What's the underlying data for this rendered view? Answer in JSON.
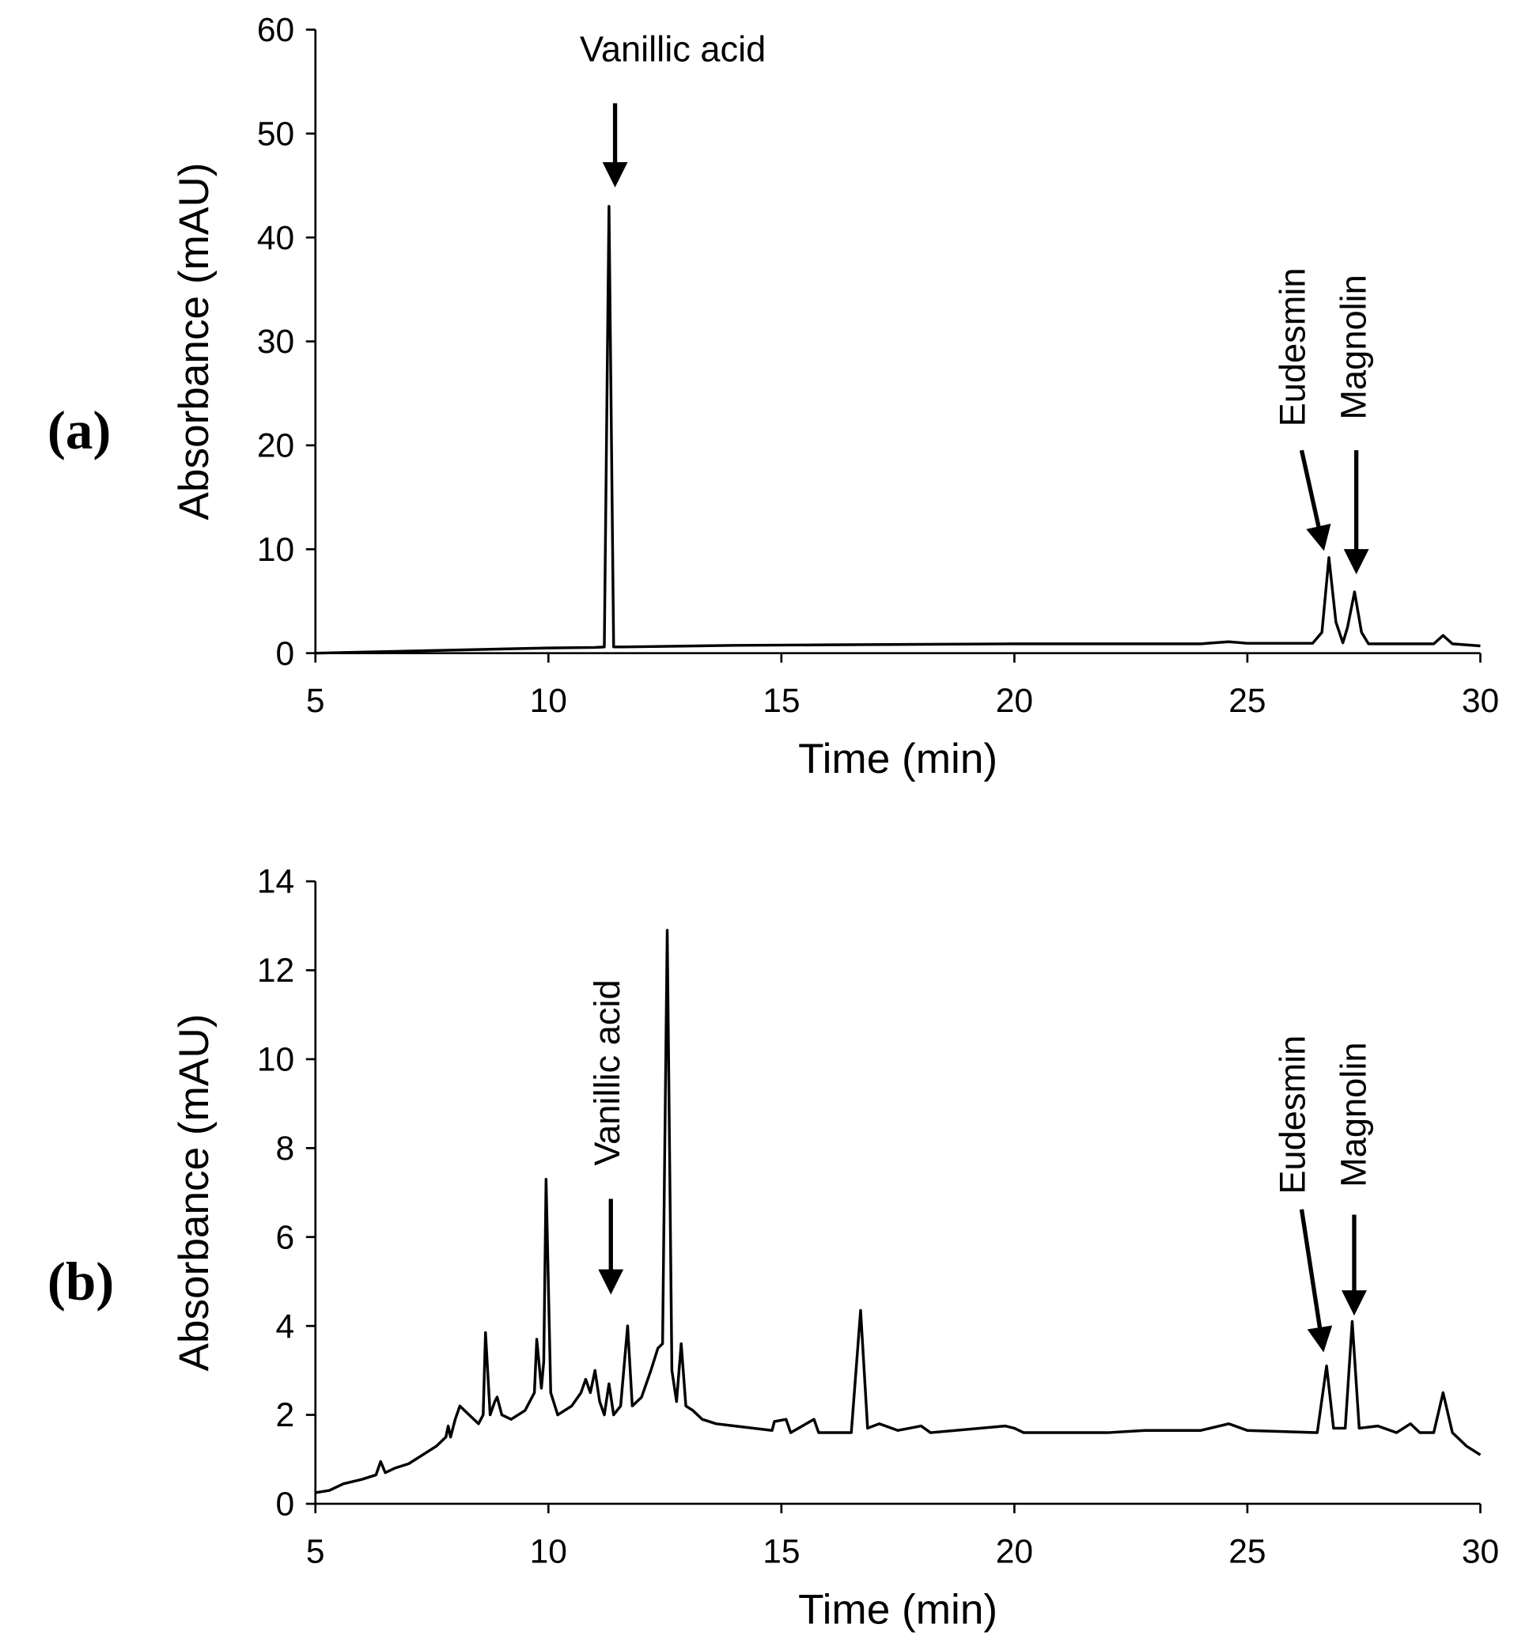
{
  "chart_data": [
    {
      "type": "line",
      "panel_label": "(a)",
      "xlabel": "Time (min)",
      "ylabel": "Absorbance (mAU)",
      "color": "#000000",
      "xlim": [
        5,
        30
      ],
      "xticks": [
        5,
        10,
        15,
        20,
        25,
        30
      ],
      "ylim": [
        0,
        60
      ],
      "yticks": [
        0,
        10,
        20,
        30,
        40,
        50,
        60
      ],
      "annotations": [
        "Vanillic acid",
        "Eudesmin",
        "Magnolin"
      ],
      "x": [
        5,
        6,
        8,
        10,
        11,
        11.2,
        11.3,
        11.4,
        11.6,
        14,
        16,
        20,
        24,
        24.6,
        25,
        26.4,
        26.6,
        26.75,
        26.9,
        27.05,
        27.15,
        27.3,
        27.45,
        27.6,
        29,
        29.2,
        29.4,
        30
      ],
      "values": [
        0,
        0.1,
        0.3,
        0.5,
        0.55,
        0.6,
        43,
        0.6,
        0.6,
        0.75,
        0.8,
        0.9,
        0.9,
        1.1,
        0.95,
        0.95,
        2,
        9.2,
        3,
        1,
        2.5,
        5.9,
        2,
        0.9,
        0.9,
        1.7,
        0.9,
        0.7
      ]
    },
    {
      "type": "line",
      "panel_label": "(b)",
      "xlabel": "Time (min)",
      "ylabel": "Absorbance (mAU)",
      "color": "#000000",
      "xlim": [
        5,
        30
      ],
      "xticks": [
        5,
        10,
        15,
        20,
        25,
        30
      ],
      "ylim": [
        0,
        14
      ],
      "yticks": [
        0,
        2,
        4,
        6,
        8,
        10,
        12,
        14
      ],
      "annotations": [
        "Vanillic acid",
        "Eudesmin",
        "Magnolin"
      ],
      "x": [
        5,
        5.3,
        5.6,
        6,
        6.3,
        6.4,
        6.5,
        6.7,
        7,
        7.3,
        7.6,
        7.8,
        7.85,
        7.9,
        8.0,
        8.1,
        8.3,
        8.5,
        8.6,
        8.65,
        8.75,
        8.85,
        8.9,
        9.0,
        9.2,
        9.5,
        9.7,
        9.75,
        9.85,
        9.9,
        9.95,
        10.05,
        10.2,
        10.5,
        10.7,
        10.8,
        10.9,
        11.0,
        11.1,
        11.2,
        11.3,
        11.4,
        11.55,
        11.7,
        11.8,
        12.0,
        12.2,
        12.35,
        12.45,
        12.55,
        12.65,
        12.75,
        12.85,
        12.95,
        13.1,
        13.3,
        13.6,
        14,
        14.4,
        14.8,
        14.85,
        15.1,
        15.2,
        15.7,
        15.8,
        16.5,
        16.7,
        16.85,
        17.1,
        17.5,
        18,
        18.2,
        19.8,
        20.0,
        20.2,
        22,
        22.8,
        24,
        24.6,
        25,
        26.5,
        26.7,
        26.85,
        27.1,
        27.25,
        27.4,
        27.8,
        28.2,
        28.5,
        28.7,
        29.0,
        29.2,
        29.4,
        29.7,
        30
      ],
      "values": [
        0.25,
        0.3,
        0.45,
        0.55,
        0.65,
        0.95,
        0.7,
        0.8,
        0.9,
        1.1,
        1.3,
        1.5,
        1.75,
        1.5,
        1.9,
        2.2,
        2.0,
        1.8,
        2.0,
        3.85,
        2.0,
        2.3,
        2.4,
        2.0,
        1.9,
        2.1,
        2.5,
        3.7,
        2.6,
        3.2,
        7.3,
        2.5,
        2.0,
        2.2,
        2.5,
        2.8,
        2.5,
        3.0,
        2.3,
        2.0,
        2.7,
        2.0,
        2.2,
        4.0,
        2.2,
        2.4,
        3.0,
        3.5,
        3.6,
        12.9,
        3.0,
        2.3,
        3.6,
        2.2,
        2.1,
        1.9,
        1.8,
        1.75,
        1.7,
        1.65,
        1.85,
        1.9,
        1.6,
        1.9,
        1.6,
        1.6,
        4.35,
        1.7,
        1.8,
        1.65,
        1.75,
        1.6,
        1.75,
        1.7,
        1.6,
        1.6,
        1.65,
        1.65,
        1.8,
        1.65,
        1.6,
        3.1,
        1.7,
        1.7,
        4.1,
        1.7,
        1.75,
        1.6,
        1.8,
        1.6,
        1.6,
        2.5,
        1.6,
        1.3,
        1.1
      ]
    }
  ]
}
